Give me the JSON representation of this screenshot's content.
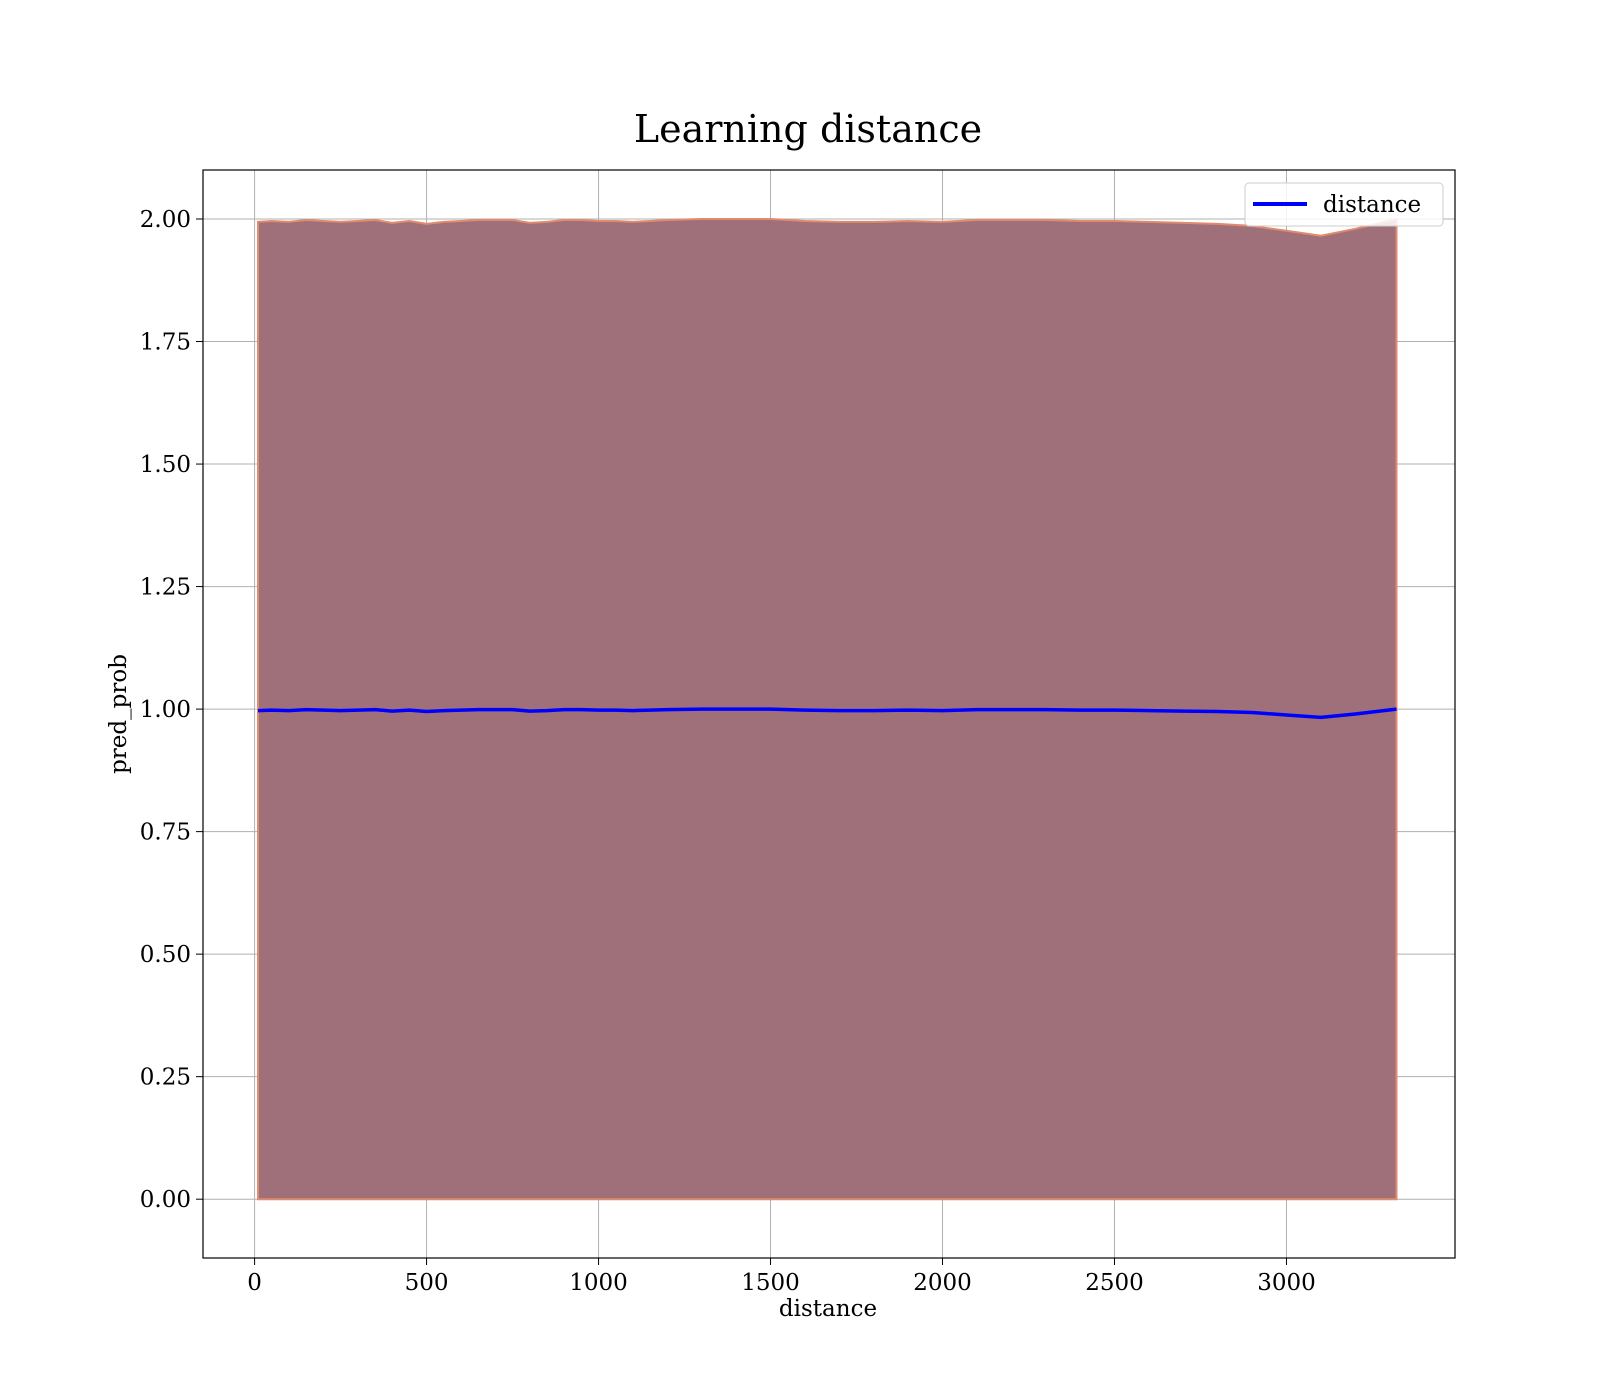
{
  "chart_data": {
    "type": "line",
    "title": "Learning distance",
    "xlabel": "distance",
    "ylabel": "pred_prob",
    "xlim": [
      -150,
      3490
    ],
    "ylim": [
      -0.12,
      2.1
    ],
    "xticks": [
      0,
      500,
      1000,
      1500,
      2000,
      2500,
      3000
    ],
    "xtick_labels": [
      "0",
      "500",
      "1000",
      "1500",
      "2000",
      "2500",
      "3000"
    ],
    "yticks": [
      0.0,
      0.25,
      0.5,
      0.75,
      1.0,
      1.25,
      1.5,
      1.75,
      2.0
    ],
    "ytick_labels": [
      "0.00",
      "0.25",
      "0.50",
      "0.75",
      "1.00",
      "1.25",
      "1.50",
      "1.75",
      "2.00"
    ],
    "grid": true,
    "legend": {
      "position": "top-right",
      "entries": [
        "distance"
      ]
    },
    "colors": {
      "line": "#0000ff",
      "band_fill": "#a0707a",
      "band_edge": "#e08a6e",
      "grid": "#b0b0b0"
    },
    "series": [
      {
        "name": "distance",
        "x": [
          10,
          50,
          100,
          150,
          200,
          250,
          300,
          350,
          400,
          450,
          500,
          550,
          600,
          650,
          700,
          750,
          800,
          850,
          900,
          950,
          1000,
          1050,
          1100,
          1150,
          1200,
          1300,
          1400,
          1500,
          1600,
          1700,
          1800,
          1900,
          2000,
          2100,
          2200,
          2300,
          2400,
          2500,
          2600,
          2700,
          2800,
          2900,
          3000,
          3100,
          3200,
          3320
        ],
        "y": [
          0.997,
          0.998,
          0.997,
          0.999,
          0.998,
          0.997,
          0.998,
          0.999,
          0.996,
          0.998,
          0.995,
          0.997,
          0.998,
          0.999,
          0.999,
          0.999,
          0.996,
          0.997,
          0.999,
          0.999,
          0.998,
          0.998,
          0.997,
          0.998,
          0.999,
          1.0,
          1.0,
          1.0,
          0.998,
          0.997,
          0.997,
          0.998,
          0.997,
          0.999,
          0.999,
          0.999,
          0.998,
          0.998,
          0.997,
          0.996,
          0.995,
          0.993,
          0.988,
          0.983,
          0.99,
          1.0
        ]
      }
    ],
    "band": {
      "x": [
        10,
        50,
        100,
        150,
        200,
        250,
        300,
        350,
        400,
        450,
        500,
        550,
        600,
        650,
        700,
        750,
        800,
        850,
        900,
        950,
        1000,
        1050,
        1100,
        1150,
        1200,
        1300,
        1400,
        1500,
        1600,
        1700,
        1800,
        1900,
        2000,
        2100,
        2200,
        2300,
        2400,
        2500,
        2600,
        2700,
        2800,
        2900,
        3000,
        3100,
        3200,
        3320
      ],
      "upper": [
        1.994,
        1.996,
        1.994,
        1.998,
        1.996,
        1.994,
        1.996,
        1.998,
        1.992,
        1.996,
        1.99,
        1.994,
        1.996,
        1.998,
        1.998,
        1.998,
        1.992,
        1.994,
        1.998,
        1.998,
        1.996,
        1.996,
        1.994,
        1.996,
        1.998,
        2.0,
        2.0,
        2.0,
        1.996,
        1.994,
        1.994,
        1.996,
        1.994,
        1.998,
        1.998,
        1.998,
        1.996,
        1.996,
        1.994,
        1.992,
        1.99,
        1.986,
        1.976,
        1.966,
        1.98,
        2.0
      ],
      "lower": [
        0.0,
        0.0,
        0.0,
        0.0,
        0.0,
        0.0,
        0.0,
        0.0,
        0.0,
        0.0,
        0.0,
        0.0,
        0.0,
        0.0,
        0.0,
        0.0,
        0.0,
        0.0,
        0.0,
        0.0,
        0.0,
        0.0,
        0.0,
        0.0,
        0.0,
        0.0,
        0.0,
        0.0,
        0.0,
        0.0,
        0.0,
        0.0,
        0.0,
        0.0,
        0.0,
        0.0,
        0.0,
        0.0,
        0.0,
        0.0,
        0.0,
        0.0,
        0.0,
        0.0,
        0.0,
        0.0
      ]
    }
  }
}
